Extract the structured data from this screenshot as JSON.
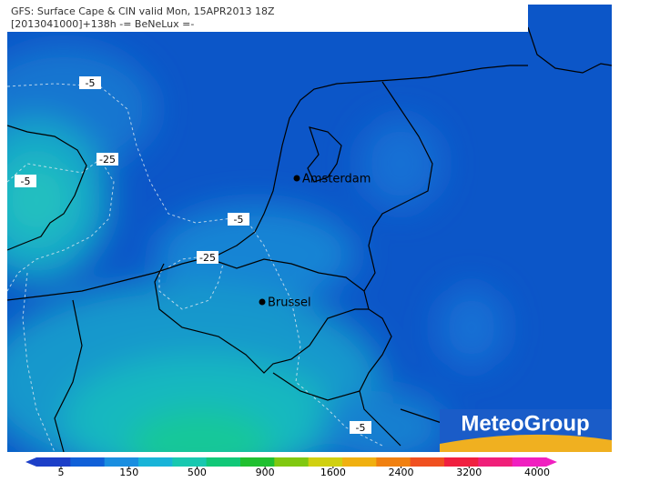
{
  "header": {
    "title": "GFS: Surface Cape & CIN valid Mon, 15APR2013 18Z",
    "subtitle": "[2013041000]+138h -= BeNeLux =-"
  },
  "cities": [
    "Amsterdam",
    "Brussel"
  ],
  "contour_labels": [
    -5,
    -25,
    -5,
    -5,
    -25,
    -5
  ],
  "colorbar": {
    "ticks": [
      5,
      150,
      500,
      900,
      1600,
      2400,
      3200,
      4000
    ],
    "colors": [
      "#1c3fc8",
      "#1060d8",
      "#1a8ee0",
      "#18b4d8",
      "#18c8b0",
      "#10c878",
      "#20c030",
      "#80c810",
      "#d0d010",
      "#f0b010",
      "#f08010",
      "#f05020",
      "#f02040",
      "#f0207a",
      "#f020c0"
    ]
  },
  "logo": "MeteoGroup"
}
